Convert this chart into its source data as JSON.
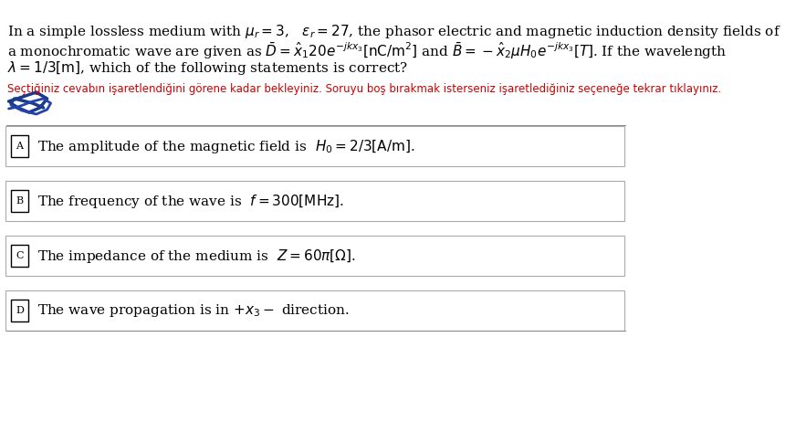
{
  "background_color": "#ffffff",
  "question_text_line1": "In a simple lossless medium with $\\mu_r = 3$,   $\\varepsilon_r = 27$, the phasor electric and magnetic induction density fields of",
  "question_text_line2": "a monochromatic wave are given as $\\bar{D} = \\hat{x}_1 20e^{-jk x_3}\\left[\\mathrm{nC/m^2}\\right]$ and $\\bar{B} = -\\hat{x}_2 \\mu H_0 e^{-jk x_3}\\left[T\\right]$. If the wavelength",
  "question_text_line3": "$\\lambda = 1/3\\left[\\mathrm{m}\\right]$, which of the following statements is correct?",
  "instruction_text": "Seçtiğiniz cevabın işaretlendiğini görene kadar bekleyiniz. Soruyu boş bırakmak isterseniz işaretlediğiniz seçeneğe tekrar tıklayınız.",
  "instruction_color": "#cc0000",
  "options": [
    {
      "label": "A",
      "text": "The amplitude of the magnetic field is $H_0 = 2/3\\left[\\mathrm{A/m}\\right]$."
    },
    {
      "label": "B",
      "text": "The frequency of the wave is $f = 300\\left[\\mathrm{MHz}\\right]$."
    },
    {
      "label": "C",
      "text": "The impedance of the medium is $Z = 60\\pi\\left[\\Omega\\right]$."
    },
    {
      "label": "D",
      "text": "The wave propagation is in $+x_3 -$ direction."
    }
  ],
  "box_color": "#000000",
  "text_color": "#000000",
  "font_size_question": 11,
  "font_size_options": 11,
  "font_size_instruction": 8.5
}
